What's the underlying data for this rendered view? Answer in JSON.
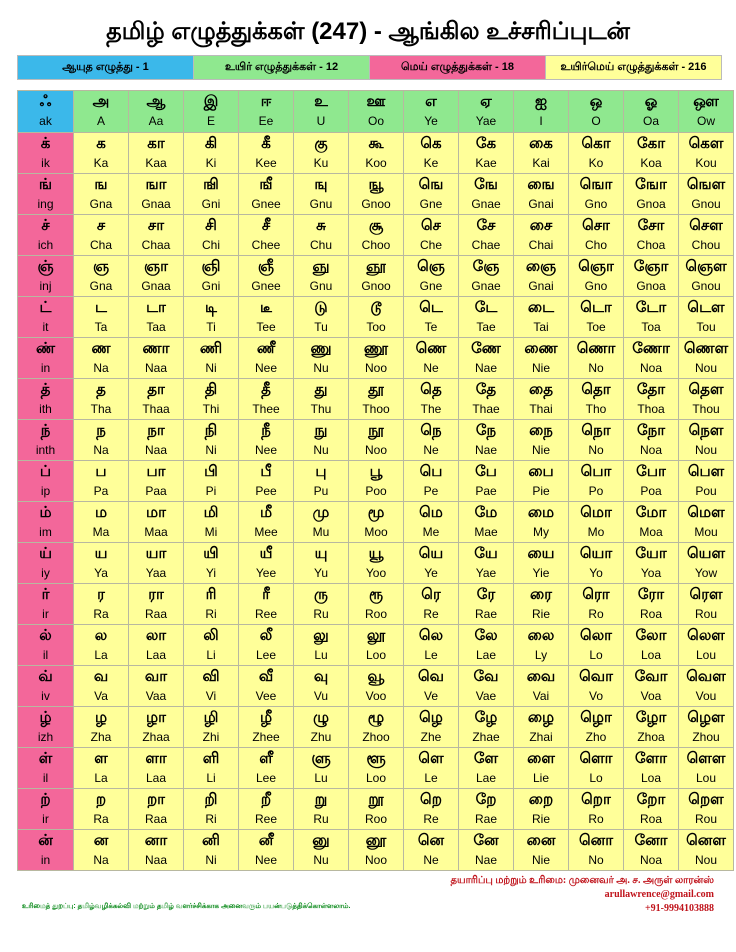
{
  "title": "தமிழ் எழுத்துக்கள் (247) - ஆங்கில உச்சரிப்புடன்",
  "legend": [
    {
      "label": "ஆயுத எழுத்து - 1",
      "color": "#3bb8ea"
    },
    {
      "label": "உயிர் எழுத்துக்கள் - 12",
      "color": "#8fe88f"
    },
    {
      "label": "மெய் எழுத்துக்கள் - 18",
      "color": "#f3679a"
    },
    {
      "label": "உயிர்மெய் எழுத்துக்கள் - 216",
      "color": "#ffff99"
    }
  ],
  "header": {
    "ayutham": {
      "ta": "ஃ",
      "en": "ak"
    },
    "vowels": [
      {
        "ta": "அ",
        "en": "A"
      },
      {
        "ta": "ஆ",
        "en": "Aa"
      },
      {
        "ta": "இ",
        "en": "E"
      },
      {
        "ta": "ஈ",
        "en": "Ee"
      },
      {
        "ta": "உ",
        "en": "U"
      },
      {
        "ta": "ஊ",
        "en": "Oo"
      },
      {
        "ta": "எ",
        "en": "Ye"
      },
      {
        "ta": "ஏ",
        "en": "Yae"
      },
      {
        "ta": "ஐ",
        "en": "I"
      },
      {
        "ta": "ஒ",
        "en": "O"
      },
      {
        "ta": "ஓ",
        "en": "Oa"
      },
      {
        "ta": "ஔ",
        "en": "Ow"
      }
    ]
  },
  "rows": [
    {
      "ta": "க்",
      "en": "ik",
      "cells": [
        [
          "க",
          "Ka"
        ],
        [
          "கா",
          "Kaa"
        ],
        [
          "கி",
          "Ki"
        ],
        [
          "கீ",
          "Kee"
        ],
        [
          "கு",
          "Ku"
        ],
        [
          "கூ",
          "Koo"
        ],
        [
          "கெ",
          "Ke"
        ],
        [
          "கே",
          "Kae"
        ],
        [
          "கை",
          "Kai"
        ],
        [
          "கொ",
          "Ko"
        ],
        [
          "கோ",
          "Koa"
        ],
        [
          "கௌ",
          "Kou"
        ]
      ]
    },
    {
      "ta": "ங்",
      "en": "ing",
      "cells": [
        [
          "ங",
          "Gna"
        ],
        [
          "ஙா",
          "Gnaa"
        ],
        [
          "ஙி",
          "Gni"
        ],
        [
          "ஙீ",
          "Gnee"
        ],
        [
          "ஙு",
          "Gnu"
        ],
        [
          "ஙூ",
          "Gnoo"
        ],
        [
          "ஙெ",
          "Gne"
        ],
        [
          "ஙே",
          "Gnae"
        ],
        [
          "ஙை",
          "Gnai"
        ],
        [
          "ஙொ",
          "Gno"
        ],
        [
          "ஙோ",
          "Gnoa"
        ],
        [
          "ஙௌ",
          "Gnou"
        ]
      ]
    },
    {
      "ta": "ச்",
      "en": "ich",
      "cells": [
        [
          "ச",
          "Cha"
        ],
        [
          "சா",
          "Chaa"
        ],
        [
          "சி",
          "Chi"
        ],
        [
          "சீ",
          "Chee"
        ],
        [
          "சு",
          "Chu"
        ],
        [
          "சூ",
          "Choo"
        ],
        [
          "செ",
          "Che"
        ],
        [
          "சே",
          "Chae"
        ],
        [
          "சை",
          "Chai"
        ],
        [
          "சொ",
          "Cho"
        ],
        [
          "சோ",
          "Choa"
        ],
        [
          "சௌ",
          "Chou"
        ]
      ]
    },
    {
      "ta": "ஞ்",
      "en": "inj",
      "cells": [
        [
          "ஞ",
          "Gna"
        ],
        [
          "ஞா",
          "Gnaa"
        ],
        [
          "ஞி",
          "Gni"
        ],
        [
          "ஞீ",
          "Gnee"
        ],
        [
          "ஞு",
          "Gnu"
        ],
        [
          "ஞூ",
          "Gnoo"
        ],
        [
          "ஞெ",
          "Gne"
        ],
        [
          "ஞே",
          "Gnae"
        ],
        [
          "ஞை",
          "Gnai"
        ],
        [
          "ஞொ",
          "Gno"
        ],
        [
          "ஞோ",
          "Gnoa"
        ],
        [
          "ஞௌ",
          "Gnou"
        ]
      ]
    },
    {
      "ta": "ட்",
      "en": "it",
      "cells": [
        [
          "ட",
          "Ta"
        ],
        [
          "டா",
          "Taa"
        ],
        [
          "டி",
          "Ti"
        ],
        [
          "டீ",
          "Tee"
        ],
        [
          "டு",
          "Tu"
        ],
        [
          "டூ",
          "Too"
        ],
        [
          "டெ",
          "Te"
        ],
        [
          "டே",
          "Tae"
        ],
        [
          "டை",
          "Tai"
        ],
        [
          "டொ",
          "Toe"
        ],
        [
          "டோ",
          "Toa"
        ],
        [
          "டௌ",
          "Tou"
        ]
      ]
    },
    {
      "ta": "ண்",
      "en": "in",
      "cells": [
        [
          "ண",
          "Na"
        ],
        [
          "ணா",
          "Naa"
        ],
        [
          "ணி",
          "Ni"
        ],
        [
          "ணீ",
          "Nee"
        ],
        [
          "ணு",
          "Nu"
        ],
        [
          "ணூ",
          "Noo"
        ],
        [
          "ணெ",
          "Ne"
        ],
        [
          "ணே",
          "Nae"
        ],
        [
          "ணை",
          "Nie"
        ],
        [
          "ணொ",
          "No"
        ],
        [
          "ணோ",
          "Noa"
        ],
        [
          "ணௌ",
          "Nou"
        ]
      ]
    },
    {
      "ta": "த்",
      "en": "ith",
      "cells": [
        [
          "த",
          "Tha"
        ],
        [
          "தா",
          "Thaa"
        ],
        [
          "தி",
          "Thi"
        ],
        [
          "தீ",
          "Thee"
        ],
        [
          "து",
          "Thu"
        ],
        [
          "தூ",
          "Thoo"
        ],
        [
          "தெ",
          "The"
        ],
        [
          "தே",
          "Thae"
        ],
        [
          "தை",
          "Thai"
        ],
        [
          "தொ",
          "Tho"
        ],
        [
          "தோ",
          "Thoa"
        ],
        [
          "தௌ",
          "Thou"
        ]
      ]
    },
    {
      "ta": "ந்",
      "en": "inth",
      "cells": [
        [
          "ந",
          "Na"
        ],
        [
          "நா",
          "Naa"
        ],
        [
          "நி",
          "Ni"
        ],
        [
          "நீ",
          "Nee"
        ],
        [
          "நு",
          "Nu"
        ],
        [
          "நூ",
          "Noo"
        ],
        [
          "நெ",
          "Ne"
        ],
        [
          "நே",
          "Nae"
        ],
        [
          "நை",
          "Nie"
        ],
        [
          "நொ",
          "No"
        ],
        [
          "நோ",
          "Noa"
        ],
        [
          "நௌ",
          "Nou"
        ]
      ]
    },
    {
      "ta": "ப்",
      "en": "ip",
      "cells": [
        [
          "ப",
          "Pa"
        ],
        [
          "பா",
          "Paa"
        ],
        [
          "பி",
          "Pi"
        ],
        [
          "பீ",
          "Pee"
        ],
        [
          "பு",
          "Pu"
        ],
        [
          "பூ",
          "Poo"
        ],
        [
          "பெ",
          "Pe"
        ],
        [
          "பே",
          "Pae"
        ],
        [
          "பை",
          "Pie"
        ],
        [
          "பொ",
          "Po"
        ],
        [
          "போ",
          "Poa"
        ],
        [
          "பௌ",
          "Pou"
        ]
      ]
    },
    {
      "ta": "ம்",
      "en": "im",
      "cells": [
        [
          "ம",
          "Ma"
        ],
        [
          "மா",
          "Maa"
        ],
        [
          "மி",
          "Mi"
        ],
        [
          "மீ",
          "Mee"
        ],
        [
          "மு",
          "Mu"
        ],
        [
          "மூ",
          "Moo"
        ],
        [
          "மெ",
          "Me"
        ],
        [
          "மே",
          "Mae"
        ],
        [
          "மை",
          "My"
        ],
        [
          "மொ",
          "Mo"
        ],
        [
          "மோ",
          "Moa"
        ],
        [
          "மௌ",
          "Mou"
        ]
      ]
    },
    {
      "ta": "ய்",
      "en": "iy",
      "cells": [
        [
          "ய",
          "Ya"
        ],
        [
          "யா",
          "Yaa"
        ],
        [
          "யி",
          "Yi"
        ],
        [
          "யீ",
          "Yee"
        ],
        [
          "யு",
          "Yu"
        ],
        [
          "யூ",
          "Yoo"
        ],
        [
          "யெ",
          "Ye"
        ],
        [
          "யே",
          "Yae"
        ],
        [
          "யை",
          "Yie"
        ],
        [
          "யொ",
          "Yo"
        ],
        [
          "யோ",
          "Yoa"
        ],
        [
          "யௌ",
          "Yow"
        ]
      ]
    },
    {
      "ta": "ர்",
      "en": "ir",
      "cells": [
        [
          "ர",
          "Ra"
        ],
        [
          "ரா",
          "Raa"
        ],
        [
          "ரி",
          "Ri"
        ],
        [
          "ரீ",
          "Ree"
        ],
        [
          "ரு",
          "Ru"
        ],
        [
          "ரூ",
          "Roo"
        ],
        [
          "ரெ",
          "Re"
        ],
        [
          "ரே",
          "Rae"
        ],
        [
          "ரை",
          "Rie"
        ],
        [
          "ரொ",
          "Ro"
        ],
        [
          "ரோ",
          "Roa"
        ],
        [
          "ரௌ",
          "Rou"
        ]
      ]
    },
    {
      "ta": "ல்",
      "en": "il",
      "cells": [
        [
          "ல",
          "La"
        ],
        [
          "லா",
          "Laa"
        ],
        [
          "லி",
          "Li"
        ],
        [
          "லீ",
          "Lee"
        ],
        [
          "லு",
          "Lu"
        ],
        [
          "லூ",
          "Loo"
        ],
        [
          "லெ",
          "Le"
        ],
        [
          "லே",
          "Lae"
        ],
        [
          "லை",
          "Ly"
        ],
        [
          "லொ",
          "Lo"
        ],
        [
          "லோ",
          "Loa"
        ],
        [
          "லௌ",
          "Lou"
        ]
      ]
    },
    {
      "ta": "வ்",
      "en": "iv",
      "cells": [
        [
          "வ",
          "Va"
        ],
        [
          "வா",
          "Vaa"
        ],
        [
          "வி",
          "Vi"
        ],
        [
          "வீ",
          "Vee"
        ],
        [
          "வு",
          "Vu"
        ],
        [
          "வூ",
          "Voo"
        ],
        [
          "வெ",
          "Ve"
        ],
        [
          "வே",
          "Vae"
        ],
        [
          "வை",
          "Vai"
        ],
        [
          "வொ",
          "Vo"
        ],
        [
          "வோ",
          "Voa"
        ],
        [
          "வௌ",
          "Vou"
        ]
      ]
    },
    {
      "ta": "ழ்",
      "en": "izh",
      "cells": [
        [
          "ழ",
          "Zha"
        ],
        [
          "ழா",
          "Zhaa"
        ],
        [
          "ழி",
          "Zhi"
        ],
        [
          "ழீ",
          "Zhee"
        ],
        [
          "ழு",
          "Zhu"
        ],
        [
          "ழூ",
          "Zhoo"
        ],
        [
          "ழெ",
          "Zhe"
        ],
        [
          "ழே",
          "Zhae"
        ],
        [
          "ழை",
          "Zhai"
        ],
        [
          "ழொ",
          "Zho"
        ],
        [
          "ழோ",
          "Zhoa"
        ],
        [
          "ழௌ",
          "Zhou"
        ]
      ]
    },
    {
      "ta": "ள்",
      "en": "il",
      "cells": [
        [
          "ள",
          "La"
        ],
        [
          "ளா",
          "Laa"
        ],
        [
          "ளி",
          "Li"
        ],
        [
          "ளீ",
          "Lee"
        ],
        [
          "ளு",
          "Lu"
        ],
        [
          "ளூ",
          "Loo"
        ],
        [
          "ளெ",
          "Le"
        ],
        [
          "ளே",
          "Lae"
        ],
        [
          "ளை",
          "Lie"
        ],
        [
          "ளொ",
          "Lo"
        ],
        [
          "ளோ",
          "Loa"
        ],
        [
          "ளௌ",
          "Lou"
        ]
      ]
    },
    {
      "ta": "ற்",
      "en": "ir",
      "cells": [
        [
          "ற",
          "Ra"
        ],
        [
          "றா",
          "Raa"
        ],
        [
          "றி",
          "Ri"
        ],
        [
          "றீ",
          "Ree"
        ],
        [
          "று",
          "Ru"
        ],
        [
          "றூ",
          "Roo"
        ],
        [
          "றெ",
          "Re"
        ],
        [
          "றே",
          "Rae"
        ],
        [
          "றை",
          "Rie"
        ],
        [
          "றொ",
          "Ro"
        ],
        [
          "றோ",
          "Roa"
        ],
        [
          "றௌ",
          "Rou"
        ]
      ]
    },
    {
      "ta": "ன்",
      "en": "in",
      "cells": [
        [
          "ன",
          "Na"
        ],
        [
          "னா",
          "Naa"
        ],
        [
          "னி",
          "Ni"
        ],
        [
          "னீ",
          "Nee"
        ],
        [
          "னு",
          "Nu"
        ],
        [
          "னூ",
          "Noo"
        ],
        [
          "னெ",
          "Ne"
        ],
        [
          "னே",
          "Nae"
        ],
        [
          "னை",
          "Nie"
        ],
        [
          "னொ",
          "No"
        ],
        [
          "னோ",
          "Noa"
        ],
        [
          "னௌ",
          "Nou"
        ]
      ]
    }
  ],
  "footer": {
    "credit": "தயாரிப்பு மற்றும் உரிமை: முனைவர் அ. ச. அருள் லாரன்ஸ்",
    "email": "arullawrence@gmail.com",
    "phone": "+91-9994103888",
    "disclaimer": "உரிமைத் துறப்பு: தமிழ்வழிக்கல்வி மற்றும் தமிழ் வளர்ச்சிக்காக அனைவரும் பயன்படுத்திக்கொள்ளலாம்."
  }
}
